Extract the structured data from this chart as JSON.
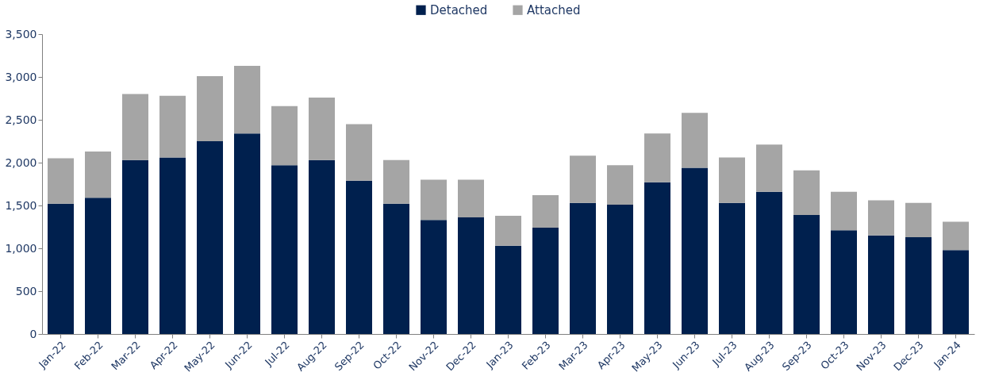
{
  "chart_data": {
    "type": "bar",
    "stacked": true,
    "legend": "top",
    "categories": [
      "Jan-22",
      "Feb-22",
      "Mar-22",
      "Apr-22",
      "May-22",
      "Jun-22",
      "Jul-22",
      "Aug-22",
      "Sep-22",
      "Oct-22",
      "Nov-22",
      "Dec-22",
      "Jan-23",
      "Feb-23",
      "Mar-23",
      "Apr-23",
      "May-23",
      "Jun-23",
      "Jul-23",
      "Aug-23",
      "Sep-23",
      "Oct-23",
      "Nov-23",
      "Dec-23",
      "Jan-24"
    ],
    "series": [
      {
        "name": "Detached",
        "color": "#00204e",
        "values": [
          1520,
          1590,
          2030,
          2060,
          2250,
          2340,
          1970,
          2030,
          1790,
          1520,
          1330,
          1360,
          1030,
          1240,
          1530,
          1510,
          1770,
          1940,
          1530,
          1660,
          1390,
          1210,
          1150,
          1130,
          980
        ]
      },
      {
        "name": "Attached",
        "color": "#a5a5a5",
        "values": [
          530,
          540,
          770,
          720,
          760,
          790,
          690,
          730,
          660,
          510,
          470,
          440,
          350,
          380,
          550,
          460,
          570,
          640,
          530,
          550,
          520,
          450,
          410,
          400,
          330
        ]
      }
    ],
    "ylim": [
      0,
      3500
    ],
    "yticks": [
      0,
      500,
      {
        "value": 1000,
        "label": "1,000"
      },
      {
        "value": 1500,
        "label": "1,500"
      },
      {
        "value": 2000,
        "label": "2,000"
      },
      {
        "value": 2500,
        "label": "2,500"
      },
      {
        "value": 3000,
        "label": "3,000"
      },
      {
        "value": 3500,
        "label": "3,500"
      }
    ],
    "grid": false
  }
}
